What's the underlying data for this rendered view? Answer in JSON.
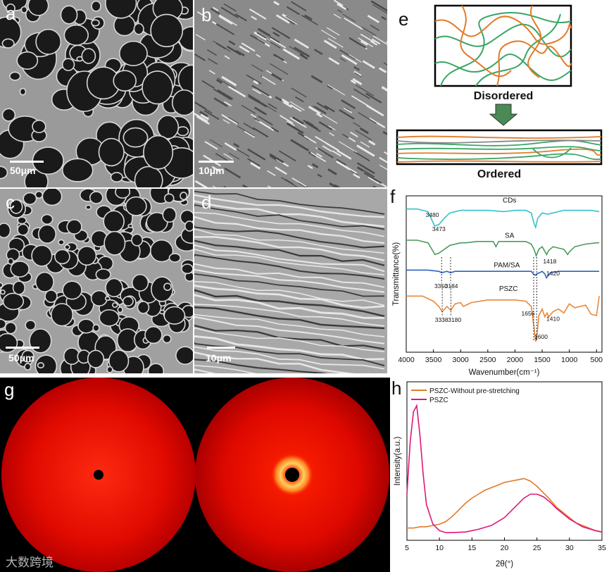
{
  "panels": {
    "a": {
      "label": "a",
      "scale": "50μm"
    },
    "b": {
      "label": "b",
      "scale": "10μm"
    },
    "c": {
      "label": "c",
      "scale": "50μm"
    },
    "d": {
      "label": "d",
      "scale": "10μm"
    },
    "e": {
      "label": "e",
      "disordered": "Disordered",
      "ordered": "Ordered"
    },
    "f": {
      "label": "f"
    },
    "g": {
      "label": "g"
    },
    "h": {
      "label": "h"
    }
  },
  "colors": {
    "orange": "#e07b2a",
    "green": "#3aa564",
    "cds": "#35c2c8",
    "sa": "#4a9a5c",
    "pam": "#2f62c4",
    "pszc": "#e8893a",
    "magenta": "#e0167a",
    "xrd_red": "#d80000"
  },
  "chart_data": [
    {
      "type": "line",
      "panel": "f",
      "xlabel": "Wavenumber(cm⁻¹)",
      "ylabel": "Transmittance(%)",
      "xlim": [
        4000,
        400
      ],
      "xticks": [
        "4000",
        "3500",
        "3000",
        "2500",
        "2000",
        "1500",
        "1000",
        "500"
      ],
      "series": [
        {
          "name": "CDs",
          "x": [
            4000,
            3800,
            3600,
            3500,
            3480,
            3400,
            3300,
            3200,
            3000,
            2800,
            2500,
            2200,
            2000,
            1800,
            1700,
            1650,
            1620,
            1580,
            1500,
            1400,
            1300,
            1200,
            1100,
            1000,
            800,
            600,
            450
          ],
          "y": [
            97,
            97,
            95,
            86,
            84,
            85,
            90,
            94,
            96,
            96,
            96,
            95,
            96,
            96,
            94,
            86,
            83,
            90,
            94,
            93,
            94,
            95,
            96,
            96,
            96,
            96,
            95
          ]
        },
        {
          "name": "SA",
          "x": [
            4000,
            3800,
            3600,
            3500,
            3473,
            3400,
            3300,
            3200,
            3000,
            2900,
            2700,
            2400,
            2350,
            2300,
            2000,
            1800,
            1700,
            1650,
            1610,
            1560,
            1500,
            1418,
            1380,
            1300,
            1200,
            1100,
            1030,
            1000,
            900,
            700,
            500,
            450
          ],
          "y": [
            73,
            73,
            71,
            64,
            62,
            63,
            66,
            69,
            71,
            71,
            72,
            72,
            68,
            72,
            72,
            72,
            70,
            66,
            61,
            66,
            68,
            62,
            65,
            68,
            67,
            66,
            62,
            64,
            68,
            70,
            71,
            71
          ]
        },
        {
          "name": "PAM/SA",
          "x": [
            4000,
            3600,
            3400,
            3350,
            3250,
            3184,
            3100,
            2900,
            2500,
            2000,
            1700,
            1660,
            1620,
            1600,
            1550,
            1500,
            1450,
            1420,
            1350,
            1200,
            1000,
            800,
            600,
            450
          ],
          "y": [
            50,
            50,
            49,
            48,
            49,
            48,
            49,
            49,
            49,
            49,
            49,
            47,
            46,
            47,
            48,
            49,
            47,
            44,
            48,
            49,
            49,
            49,
            49,
            49
          ]
        },
        {
          "name": "PSZC",
          "x": [
            4000,
            3700,
            3500,
            3400,
            3338,
            3250,
            3180,
            3100,
            3000,
            2950,
            2800,
            2500,
            2000,
            1800,
            1700,
            1656,
            1620,
            1600,
            1560,
            1500,
            1450,
            1410,
            1380,
            1300,
            1200,
            1100,
            1000,
            900,
            700,
            600,
            500,
            450
          ],
          "y": [
            30,
            30,
            26,
            22,
            18,
            22,
            19,
            24,
            25,
            22,
            25,
            27,
            27,
            26,
            22,
            8,
            -5,
            -2,
            15,
            20,
            14,
            17,
            14,
            18,
            20,
            17,
            24,
            21,
            23,
            16,
            15,
            30
          ]
        }
      ],
      "annotations": [
        "3480",
        "3473",
        "1418",
        "3350",
        "3184",
        "1420",
        "3338",
        "3180",
        "1656",
        "1600",
        "1410"
      ]
    },
    {
      "type": "line",
      "panel": "h",
      "xlabel": "2θ(°)",
      "ylabel": "Intensity(a.u.)",
      "xlim": [
        5,
        35
      ],
      "xticks": [
        "5",
        "10",
        "15",
        "20",
        "25",
        "30",
        "35"
      ],
      "legend": "top-left",
      "series": [
        {
          "name": "PSZC-Without pre-stretching",
          "x": [
            5,
            6,
            7,
            8,
            9,
            10,
            11,
            12,
            13,
            14,
            15,
            16,
            17,
            18,
            19,
            20,
            21,
            22,
            23,
            24,
            25,
            26,
            27,
            28,
            29,
            30,
            31,
            32,
            33,
            34,
            35
          ],
          "y": [
            0.04,
            0.04,
            0.05,
            0.05,
            0.06,
            0.07,
            0.09,
            0.13,
            0.18,
            0.23,
            0.27,
            0.3,
            0.33,
            0.35,
            0.37,
            0.39,
            0.4,
            0.41,
            0.42,
            0.4,
            0.36,
            0.31,
            0.26,
            0.2,
            0.16,
            0.12,
            0.08,
            0.06,
            0.04,
            0.02,
            0.01
          ]
        },
        {
          "name": "PSZC",
          "x": [
            5,
            5.5,
            6,
            6.5,
            7,
            7.5,
            8,
            9,
            10,
            11,
            12,
            14,
            16,
            18,
            20,
            22,
            23,
            24,
            25,
            26,
            27,
            28,
            30,
            32,
            34,
            35
          ],
          "y": [
            0.3,
            0.7,
            0.93,
            0.98,
            0.75,
            0.45,
            0.22,
            0.07,
            0.02,
            0.005,
            0.005,
            0.01,
            0.03,
            0.06,
            0.12,
            0.22,
            0.27,
            0.3,
            0.3,
            0.28,
            0.24,
            0.19,
            0.11,
            0.05,
            0.02,
            0.01
          ]
        }
      ]
    }
  ],
  "watermark": "大数跨境"
}
